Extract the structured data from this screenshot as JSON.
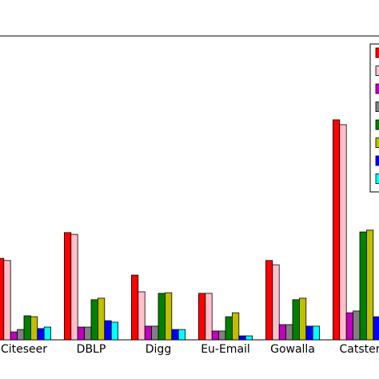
{
  "chart_data": {
    "type": "bar",
    "categories": [
      "Citeseer",
      "DBLP",
      "Digg",
      "Eu-Email",
      "Gowalla",
      "Catster"
    ],
    "series": [
      {
        "color": "#ff0000",
        "values": [
          26.8,
          35.3,
          21.3,
          15.3,
          26.1,
          72.4
        ]
      },
      {
        "color": "#ffc0cb",
        "values": [
          26.1,
          34.7,
          15.8,
          15.3,
          24.7,
          70.8
        ]
      },
      {
        "color": "#bf00bf",
        "values": [
          2.6,
          4.2,
          4.5,
          2.9,
          5.0,
          8.9
        ]
      },
      {
        "color": "#808080",
        "values": [
          3.4,
          4.2,
          4.5,
          2.9,
          5.0,
          9.5
        ]
      },
      {
        "color": "#008000",
        "values": [
          7.9,
          13.2,
          15.3,
          7.6,
          13.2,
          35.5
        ]
      },
      {
        "color": "#bfbf00",
        "values": [
          7.6,
          13.7,
          15.5,
          8.9,
          13.7,
          36.1
        ]
      },
      {
        "color": "#0000ff",
        "values": [
          3.7,
          6.3,
          3.4,
          1.3,
          4.5,
          7.6
        ]
      },
      {
        "color": "#00ffff",
        "values": [
          4.2,
          5.8,
          3.4,
          1.3,
          4.5,
          null
        ]
      }
    ],
    "ylim": [
      0,
      100
    ]
  }
}
